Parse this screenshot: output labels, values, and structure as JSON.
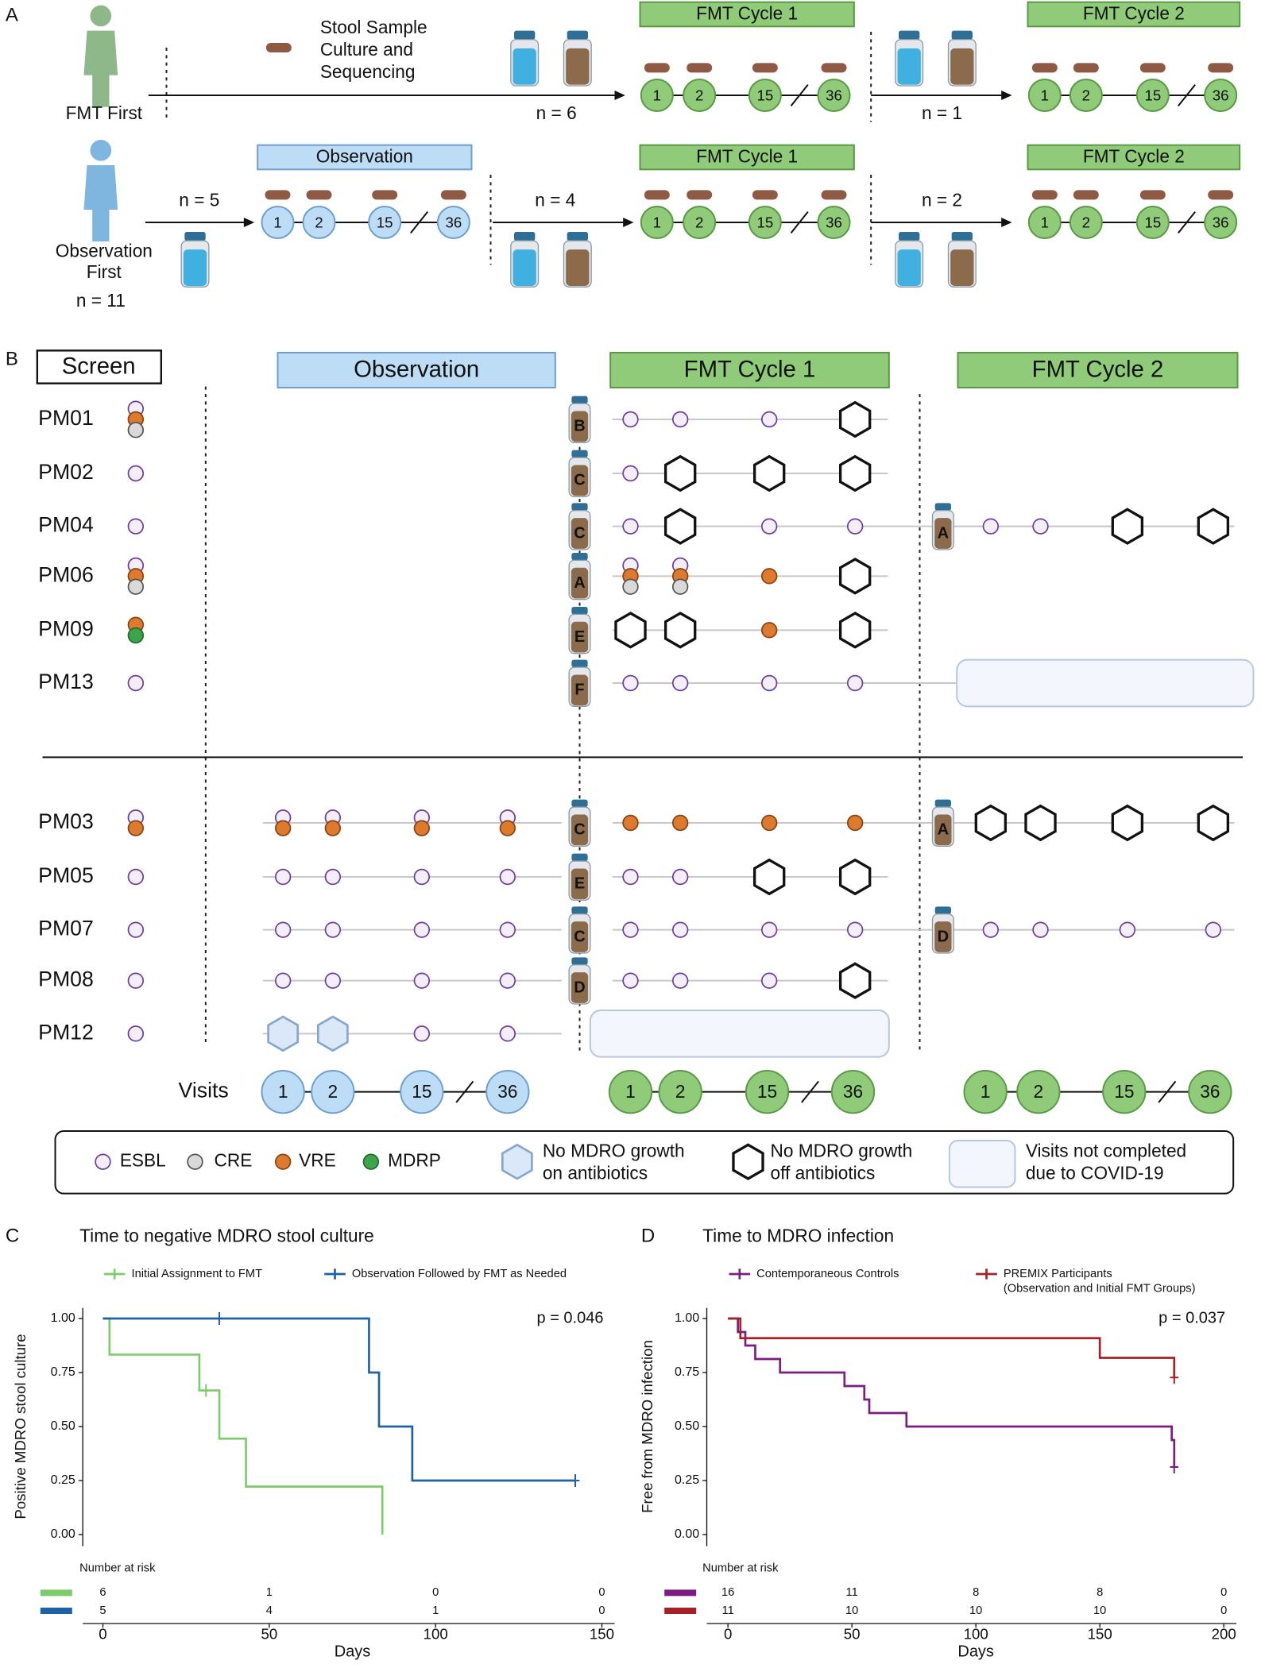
{
  "panel_a": {
    "label": "A",
    "legend_lines": [
      "Stool Sample",
      "Culture and",
      "Sequencing"
    ],
    "visits": [
      "1",
      "2",
      "15",
      "36"
    ],
    "rows": [
      {
        "name_lines": [
          "FMT First"
        ],
        "arrow_labels": [
          "n = 6",
          "n = 1"
        ],
        "phases": [
          "FMT Cycle 1",
          "FMT Cycle 2"
        ]
      },
      {
        "name_lines": [
          "Observation",
          "First"
        ],
        "total": "n = 11",
        "arrow_labels": [
          "n = 5",
          "n = 4",
          "n = 2"
        ],
        "phases": [
          "Observation",
          "FMT Cycle 1",
          "FMT Cycle 2"
        ]
      }
    ]
  },
  "panel_b": {
    "label": "B",
    "screen": "Screen",
    "phases": [
      "Observation",
      "FMT Cycle 1",
      "FMT Cycle 2"
    ],
    "visits_label": "Visits",
    "visits": [
      "1",
      "2",
      "15",
      "36"
    ],
    "legend": [
      {
        "lines": [
          "ESBL"
        ]
      },
      {
        "lines": [
          "CRE"
        ]
      },
      {
        "lines": [
          "VRE"
        ]
      },
      {
        "lines": [
          "MDRP"
        ]
      },
      {
        "lines": [
          "No MDRO growth",
          "on antibiotics"
        ]
      },
      {
        "lines": [
          "No MDRO growth",
          "off antibiotics"
        ]
      },
      {
        "lines": [
          "Visits not completed",
          "due to COVID-19"
        ]
      }
    ],
    "patients": [
      {
        "id": "PM01",
        "screen": [
          0,
          2,
          1
        ],
        "phases": [
          null,
          {
            "donor": "B",
            "visits": [
              [
                0
              ],
              [
                0
              ],
              [
                0
              ],
              [
                5
              ]
            ]
          },
          null
        ]
      },
      {
        "id": "PM02",
        "screen": [
          0
        ],
        "phases": [
          null,
          {
            "donor": "C",
            "visits": [
              [
                0
              ],
              [
                5
              ],
              [
                5
              ],
              [
                5
              ]
            ]
          },
          null
        ]
      },
      {
        "id": "PM04",
        "screen": [
          0
        ],
        "phases": [
          null,
          {
            "donor": "C",
            "visits": [
              [
                0
              ],
              [
                5
              ],
              [
                0
              ],
              [
                0
              ]
            ]
          },
          {
            "donor": "A",
            "visits": [
              [
                0
              ],
              [
                0
              ],
              [
                5
              ],
              [
                5
              ]
            ]
          }
        ]
      },
      {
        "id": "PM06",
        "screen": [
          0,
          2,
          1
        ],
        "phases": [
          null,
          {
            "donor": "A",
            "visits": [
              [
                0,
                2,
                1
              ],
              [
                0,
                2,
                1
              ],
              [
                2
              ],
              [
                5
              ]
            ]
          },
          null
        ]
      },
      {
        "id": "PM09",
        "screen": [
          2,
          3
        ],
        "phases": [
          null,
          {
            "donor": "E",
            "visits": [
              [
                5
              ],
              [
                5
              ],
              [
                2
              ],
              [
                5
              ]
            ]
          },
          null
        ]
      },
      {
        "id": "PM13",
        "screen": [
          0
        ],
        "phases": [
          null,
          {
            "donor": "F",
            "visits": [
              [
                0
              ],
              [
                0
              ],
              [
                0
              ],
              [
                0
              ]
            ]
          },
          6
        ]
      },
      {
        "id": "PM03",
        "screen": [
          0,
          2
        ],
        "phases": [
          {
            "visits": [
              [
                0,
                2
              ],
              [
                0,
                2
              ],
              [
                0,
                2
              ],
              [
                0,
                2
              ]
            ]
          },
          {
            "donor": "C",
            "visits": [
              [
                2
              ],
              [
                2
              ],
              [
                2
              ],
              [
                2
              ]
            ]
          },
          {
            "donor": "A",
            "visits": [
              [
                5
              ],
              [
                5
              ],
              [
                5
              ],
              [
                5
              ]
            ]
          }
        ]
      },
      {
        "id": "PM05",
        "screen": [
          0
        ],
        "phases": [
          {
            "visits": [
              [
                0
              ],
              [
                0
              ],
              [
                0
              ],
              [
                0
              ]
            ]
          },
          {
            "donor": "E",
            "visits": [
              [
                0
              ],
              [
                0
              ],
              [
                5
              ],
              [
                5
              ]
            ]
          },
          null
        ]
      },
      {
        "id": "PM07",
        "screen": [
          0
        ],
        "phases": [
          {
            "visits": [
              [
                0
              ],
              [
                0
              ],
              [
                0
              ],
              [
                0
              ]
            ]
          },
          {
            "donor": "C",
            "visits": [
              [
                0
              ],
              [
                0
              ],
              [
                0
              ],
              [
                0
              ]
            ]
          },
          {
            "donor": "D",
            "visits": [
              [
                0
              ],
              [
                0
              ],
              [
                0
              ],
              [
                0
              ]
            ]
          }
        ]
      },
      {
        "id": "PM08",
        "screen": [
          0
        ],
        "phases": [
          {
            "visits": [
              [
                0
              ],
              [
                0
              ],
              [
                0
              ],
              [
                0
              ]
            ]
          },
          {
            "donor": "D",
            "visits": [
              [
                0
              ],
              [
                0
              ],
              [
                0
              ],
              [
                5
              ]
            ]
          },
          null
        ]
      },
      {
        "id": "PM12",
        "screen": [
          0
        ],
        "phases": [
          {
            "visits": [
              [
                4
              ],
              [
                4
              ],
              [
                0
              ],
              [
                0
              ]
            ]
          },
          6,
          null
        ]
      }
    ]
  },
  "chart_data": [
    {
      "type": "km",
      "panel_label": "C",
      "title": "Time to negative MDRO stool culture",
      "xlabel": "Days",
      "ylabel": "Positive MDRO stool culture",
      "xlim": [
        0,
        150
      ],
      "xticks": [
        0,
        50,
        100,
        150
      ],
      "ylim": [
        0,
        1
      ],
      "yticks": [
        {
          "value": 0,
          "label": "0.00"
        },
        {
          "value": 0.25,
          "label": "0.25"
        },
        {
          "value": 0.5,
          "label": "0.50"
        },
        {
          "value": 0.75,
          "label": "0.75"
        },
        {
          "value": 1,
          "label": "1.00"
        }
      ],
      "annotation": "p = 0.046",
      "risk_title": "Number at risk",
      "series": [
        {
          "name": "Initial Assignment to FMT",
          "color": "#7dcc6c",
          "x": [
            0,
            2,
            29,
            35,
            43,
            84
          ],
          "values": [
            1,
            0.833,
            0.667,
            0.444,
            0.222,
            0
          ],
          "censor_x": [
            31
          ],
          "censor_values": [
            0.667
          ],
          "at_risk": [
            6,
            1,
            0,
            0
          ]
        },
        {
          "name": "Observation Followed by FMT as Needed",
          "color": "#1f62a4",
          "x": [
            0,
            80,
            83,
            93,
            142
          ],
          "values": [
            1,
            0.75,
            0.5,
            0.25,
            0.25
          ],
          "censor_x": [
            35,
            142
          ],
          "censor_values": [
            1,
            0.25
          ],
          "at_risk": [
            5,
            4,
            1,
            0
          ]
        }
      ]
    },
    {
      "type": "km",
      "panel_label": "D",
      "title": "Time to MDRO infection",
      "xlabel": "Days",
      "ylabel": "Free from MDRO infection",
      "xlim": [
        0,
        200
      ],
      "xticks": [
        0,
        50,
        100,
        150,
        200
      ],
      "ylim": [
        0,
        1
      ],
      "yticks": [
        {
          "value": 0,
          "label": "0.00"
        },
        {
          "value": 0.25,
          "label": "0.25"
        },
        {
          "value": 0.5,
          "label": "0.50"
        },
        {
          "value": 0.75,
          "label": "0.75"
        },
        {
          "value": 1,
          "label": "1.00"
        }
      ],
      "annotation": "p = 0.037",
      "risk_title": "Number at risk",
      "series": [
        {
          "name": "Contemporaneous Controls",
          "color": "#7b1c80",
          "x": [
            0,
            4,
            7,
            11,
            21,
            47,
            55,
            57,
            72,
            179,
            180
          ],
          "values": [
            1,
            0.9375,
            0.875,
            0.8125,
            0.75,
            0.6875,
            0.625,
            0.5625,
            0.5,
            0.4375,
            0.3125
          ],
          "censor_x": [
            180
          ],
          "censor_values": [
            0.3125
          ],
          "at_risk": [
            16,
            11,
            8,
            8,
            0
          ]
        },
        {
          "name": "PREMIX Participants",
          "subname": "(Observation and Initial FMT Groups)",
          "color": "#a52126",
          "x": [
            0,
            5,
            150,
            180
          ],
          "values": [
            1,
            0.909,
            0.818,
            0.727
          ],
          "censor_x": [
            180
          ],
          "censor_values": [
            0.727
          ],
          "at_risk": [
            11,
            10,
            10,
            10,
            0
          ]
        }
      ]
    }
  ]
}
